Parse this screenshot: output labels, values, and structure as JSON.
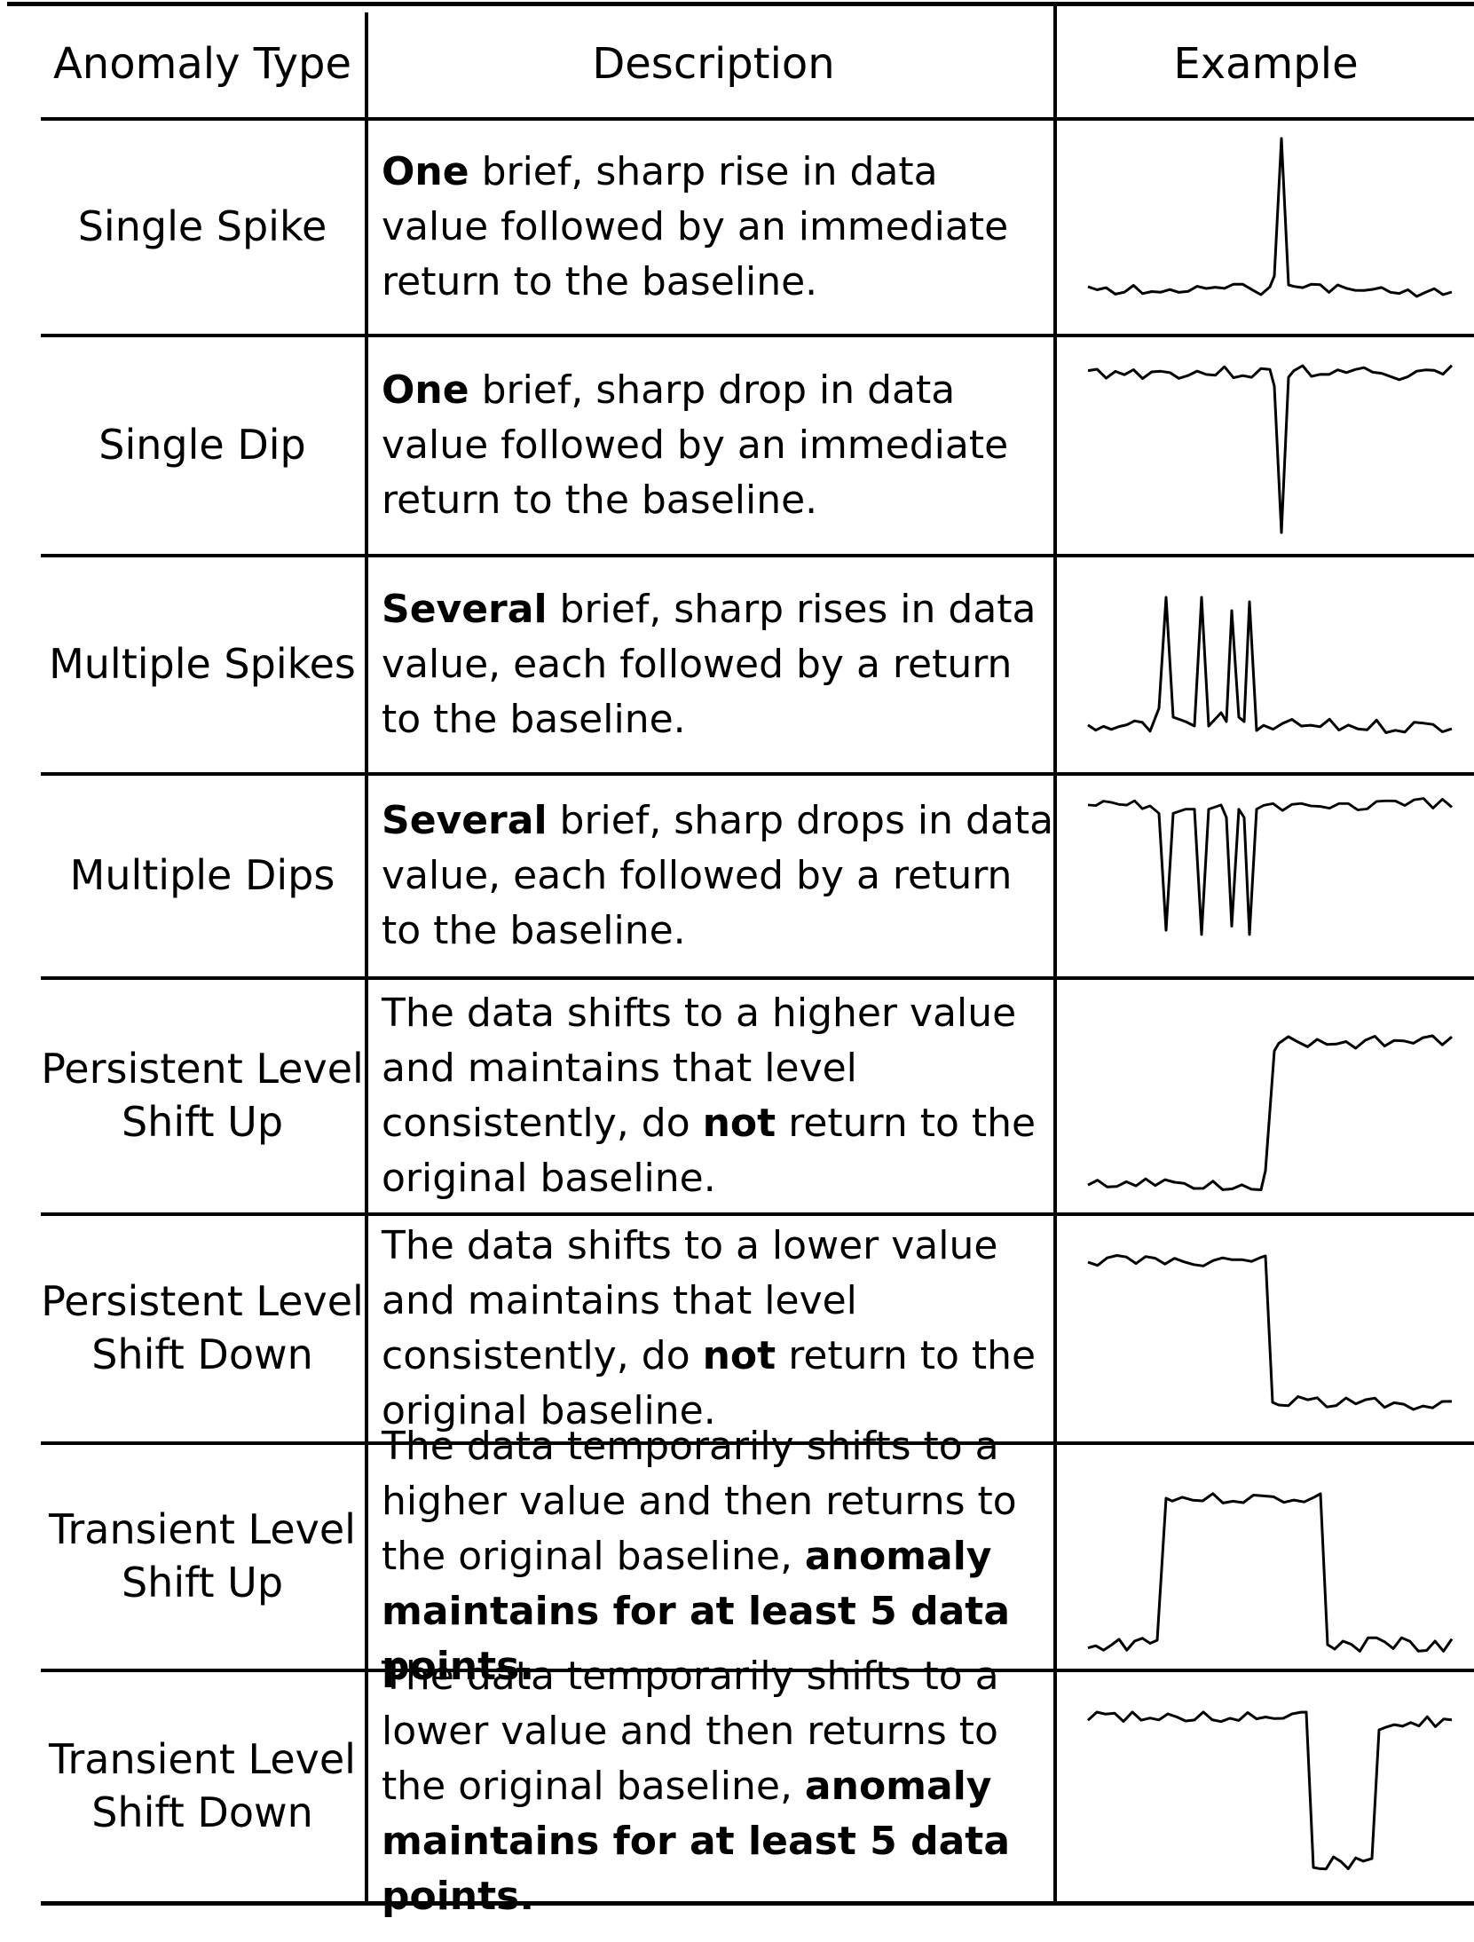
{
  "headers": {
    "type": "Anomaly Type",
    "description": "Description",
    "example": "Example"
  },
  "rows": [
    {
      "type_lines": [
        "Single Spike"
      ],
      "desc": [
        {
          "b": "One"
        },
        {
          "t": " brief, sharp rise in data value followed by an immediate return to the baseline."
        }
      ],
      "example": "single-spike"
    },
    {
      "type_lines": [
        "Single Dip"
      ],
      "desc": [
        {
          "b": "One"
        },
        {
          "t": " brief, sharp drop in data value followed by an immediate return to the baseline."
        }
      ],
      "example": "single-dip"
    },
    {
      "type_lines": [
        "Multiple Spikes"
      ],
      "desc": [
        {
          "b": "Several"
        },
        {
          "t": " brief, sharp rises in data value, each followed by a return to the baseline."
        }
      ],
      "example": "multiple-spikes"
    },
    {
      "type_lines": [
        "Multiple Dips"
      ],
      "desc": [
        {
          "b": "Several"
        },
        {
          "t": " brief, sharp drops in data value, each followed by a return to the baseline."
        }
      ],
      "example": "multiple-dips"
    },
    {
      "type_lines": [
        "Persistent Level",
        "Shift Up"
      ],
      "desc": [
        {
          "t": "The data shifts to a higher value and maintains that level consistently, do "
        },
        {
          "b": "not"
        },
        {
          "t": " return to the original baseline."
        }
      ],
      "example": "persistent-up"
    },
    {
      "type_lines": [
        "Persistent Level",
        "Shift Down"
      ],
      "desc": [
        {
          "t": "The data shifts to a lower value and maintains that level consistently, do "
        },
        {
          "b": "not"
        },
        {
          "t": " return to the original baseline."
        }
      ],
      "example": "persistent-down"
    },
    {
      "type_lines": [
        "Transient Level",
        "Shift Up"
      ],
      "desc": [
        {
          "t": "The data temporarily shifts to a higher value and then returns to the original baseline, "
        },
        {
          "b": "anomaly maintains for at least 5 data points."
        }
      ],
      "example": "transient-up"
    },
    {
      "type_lines": [
        "Transient Level",
        "Shift Down"
      ],
      "desc": [
        {
          "t": "The data temporarily shifts to a lower value and then returns to the original baseline, "
        },
        {
          "b": "anomaly maintains for at least 5 data points."
        }
      ],
      "example": "transient-down"
    }
  ]
}
